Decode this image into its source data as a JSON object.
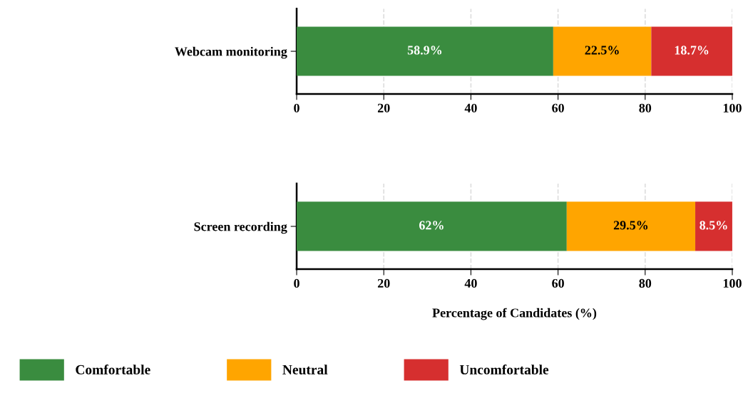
{
  "chart_data": [
    {
      "type": "bar",
      "orientation": "horizontal",
      "stacked": true,
      "categories": [
        "Webcam monitoring"
      ],
      "xlim": [
        0,
        100
      ],
      "xticks": [
        0,
        20,
        40,
        60,
        80,
        100
      ],
      "grid": "x",
      "series": [
        {
          "color": "#3a8c3f",
          "values": [
            58.9
          ],
          "value_labels": [
            "58.9%"
          ]
        },
        {
          "color": "#ffa500",
          "values": [
            22.5
          ],
          "value_labels": [
            "22.5%"
          ]
        },
        {
          "color": "#d62f2f",
          "values": [
            18.7
          ],
          "value_labels": [
            "18.7%"
          ]
        }
      ]
    },
    {
      "type": "bar",
      "orientation": "horizontal",
      "stacked": true,
      "categories": [
        "Screen recording"
      ],
      "xlim": [
        0,
        100
      ],
      "xticks": [
        0,
        20,
        40,
        60,
        80,
        100
      ],
      "grid": "x",
      "legend": "bottom",
      "xlabel": "Percentage of Candidates (%)",
      "series": [
        {
          "name": "Comfortable",
          "color": "#3a8c3f",
          "values": [
            62
          ],
          "value_labels": [
            "62%"
          ]
        },
        {
          "name": "Neutral",
          "color": "#ffa500",
          "values": [
            29.5
          ],
          "value_labels": [
            "29.5%"
          ]
        },
        {
          "name": "Uncomfortable",
          "color": "#d62f2f",
          "values": [
            8.5
          ],
          "value_labels": [
            "8.5%"
          ]
        }
      ]
    }
  ]
}
